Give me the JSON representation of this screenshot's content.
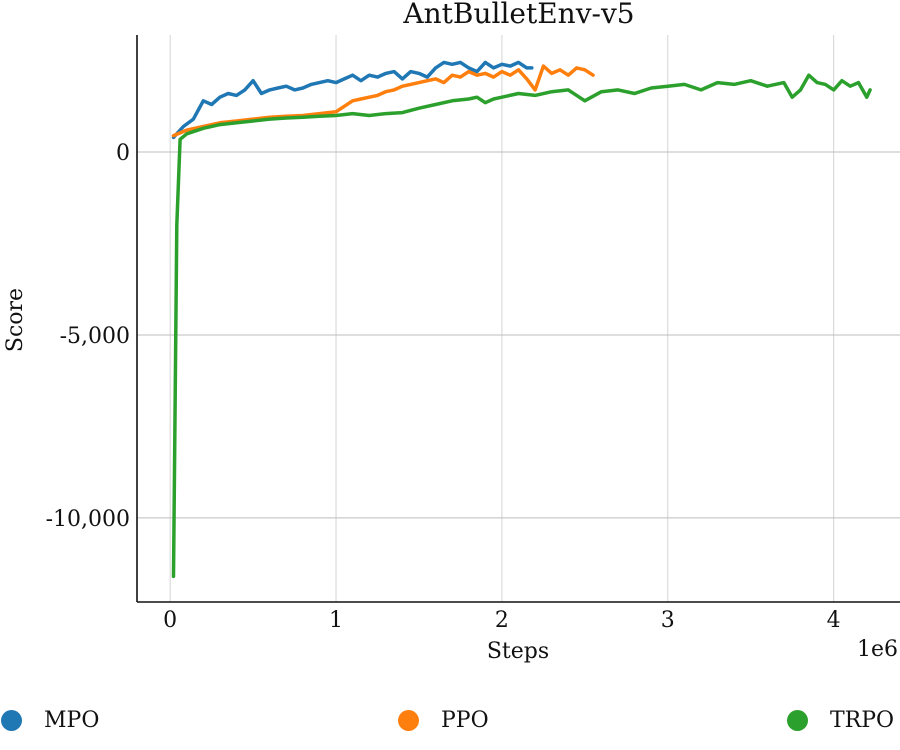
{
  "chart_data": {
    "type": "line",
    "title": "AntBulletEnv-v5",
    "xlabel": "Steps",
    "ylabel": "Score",
    "x_offset_label": "1e6",
    "xlim": [
      -0.2,
      4.4
    ],
    "ylim": [
      -12300,
      3200
    ],
    "x_ticks": [
      0,
      1,
      2,
      3,
      4
    ],
    "x_tick_labels": [
      "0",
      "1",
      "2",
      "3",
      "4"
    ],
    "y_ticks": [
      0,
      -5000,
      -10000
    ],
    "y_tick_labels": [
      "0",
      "-5,000",
      "-10,000"
    ],
    "grid": true,
    "legend_position": "bottom",
    "series": [
      {
        "name": "MPO",
        "color": "#1f77b4",
        "x": [
          0.02,
          0.08,
          0.14,
          0.2,
          0.25,
          0.3,
          0.35,
          0.4,
          0.45,
          0.5,
          0.55,
          0.6,
          0.65,
          0.7,
          0.75,
          0.8,
          0.85,
          0.9,
          0.95,
          1.0,
          1.05,
          1.1,
          1.15,
          1.2,
          1.25,
          1.3,
          1.35,
          1.4,
          1.45,
          1.5,
          1.55,
          1.6,
          1.65,
          1.7,
          1.75,
          1.8,
          1.85,
          1.9,
          1.95,
          2.0,
          2.05,
          2.1,
          2.15,
          2.18
        ],
        "y": [
          400,
          700,
          900,
          1400,
          1300,
          1500,
          1600,
          1550,
          1700,
          1950,
          1600,
          1700,
          1750,
          1800,
          1700,
          1750,
          1850,
          1900,
          1950,
          1900,
          2000,
          2100,
          1950,
          2100,
          2050,
          2150,
          2200,
          2000,
          2200,
          2150,
          2050,
          2300,
          2450,
          2400,
          2450,
          2300,
          2200,
          2450,
          2300,
          2400,
          2350,
          2450,
          2300,
          2300
        ]
      },
      {
        "name": "PPO",
        "color": "#ff7f0e",
        "x": [
          0.02,
          0.1,
          0.2,
          0.3,
          0.4,
          0.5,
          0.6,
          0.7,
          0.8,
          0.9,
          1.0,
          1.05,
          1.1,
          1.15,
          1.2,
          1.25,
          1.3,
          1.35,
          1.4,
          1.45,
          1.5,
          1.55,
          1.6,
          1.65,
          1.7,
          1.75,
          1.8,
          1.85,
          1.9,
          1.95,
          2.0,
          2.05,
          2.1,
          2.15,
          2.2,
          2.25,
          2.3,
          2.35,
          2.4,
          2.45,
          2.5,
          2.55
        ],
        "y": [
          450,
          600,
          700,
          800,
          850,
          900,
          950,
          980,
          1000,
          1050,
          1100,
          1250,
          1400,
          1450,
          1500,
          1550,
          1650,
          1700,
          1800,
          1850,
          1900,
          1950,
          2000,
          1900,
          2100,
          2050,
          2200,
          2100,
          2150,
          2050,
          2200,
          2100,
          2250,
          2000,
          1700,
          2350,
          2150,
          2250,
          2100,
          2300,
          2250,
          2100
        ]
      },
      {
        "name": "TRPO",
        "color": "#2ca02c",
        "x": [
          0.02,
          0.04,
          0.06,
          0.1,
          0.2,
          0.3,
          0.4,
          0.5,
          0.6,
          0.7,
          0.8,
          0.9,
          1.0,
          1.1,
          1.2,
          1.3,
          1.4,
          1.5,
          1.6,
          1.7,
          1.8,
          1.85,
          1.9,
          1.95,
          2.0,
          2.1,
          2.2,
          2.3,
          2.4,
          2.5,
          2.6,
          2.7,
          2.8,
          2.9,
          3.0,
          3.1,
          3.2,
          3.3,
          3.4,
          3.5,
          3.6,
          3.7,
          3.75,
          3.8,
          3.85,
          3.9,
          3.95,
          4.0,
          4.05,
          4.1,
          4.15,
          4.2,
          4.22
        ],
        "y": [
          -11600,
          -2000,
          350,
          500,
          650,
          750,
          800,
          850,
          900,
          930,
          950,
          980,
          1000,
          1050,
          1000,
          1050,
          1080,
          1200,
          1300,
          1400,
          1450,
          1500,
          1350,
          1450,
          1500,
          1600,
          1550,
          1650,
          1700,
          1400,
          1650,
          1700,
          1600,
          1750,
          1800,
          1850,
          1700,
          1900,
          1850,
          1950,
          1800,
          1900,
          1500,
          1700,
          2100,
          1900,
          1850,
          1700,
          1950,
          1800,
          1900,
          1500,
          1700
        ]
      }
    ]
  }
}
